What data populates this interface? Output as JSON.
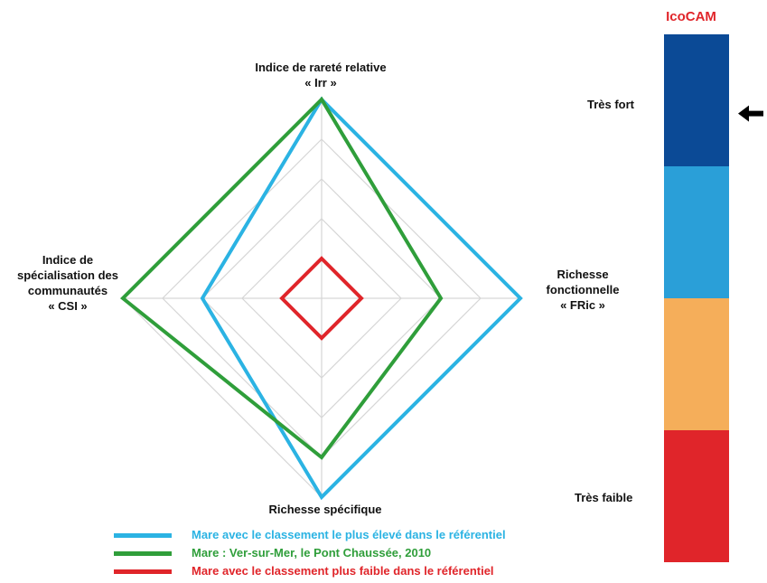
{
  "chart_data": {
    "type": "radar",
    "axes": [
      {
        "name": "top",
        "lines": [
          "Indice de rareté relative",
          "« Irr »"
        ]
      },
      {
        "name": "right",
        "lines": [
          "Richesse",
          "fonctionnelle",
          "« FRic »"
        ]
      },
      {
        "name": "bottom",
        "lines": [
          "Richesse spécifique"
        ]
      },
      {
        "name": "left",
        "lines": [
          "Indice de",
          "spécialisation des",
          "communautés",
          "« CSI »"
        ]
      }
    ],
    "rmax": 1,
    "grid_levels": 5,
    "grid": true,
    "legend_position": "bottom",
    "series": [
      {
        "name": "Mare avec le classement le plus élevé dans le référentiel",
        "color": "#2bb3e3",
        "values": [
          1.0,
          1.0,
          1.0,
          0.6
        ]
      },
      {
        "name": "Mare : Ver-sur-Mer, le Pont Chaussée, 2010",
        "color": "#2f9e3a",
        "values": [
          1.0,
          0.6,
          0.8,
          1.0
        ]
      },
      {
        "name": "Mare avec le classement plus faible dans le référentiel",
        "color": "#e0252a",
        "values": [
          0.2,
          0.2,
          0.2,
          0.2
        ]
      }
    ]
  },
  "scale": {
    "title": "IcoCAM",
    "title_color": "#e0252a",
    "levels": [
      {
        "color": "#0b4a96"
      },
      {
        "color": "#2a9fd8"
      },
      {
        "color": "#f5ae5a"
      },
      {
        "color": "#e0252a"
      }
    ],
    "top_label": "Très fort",
    "bottom_label": "Très faible",
    "indicator_level": 0,
    "arrow_icon": "arrow-left-icon"
  }
}
